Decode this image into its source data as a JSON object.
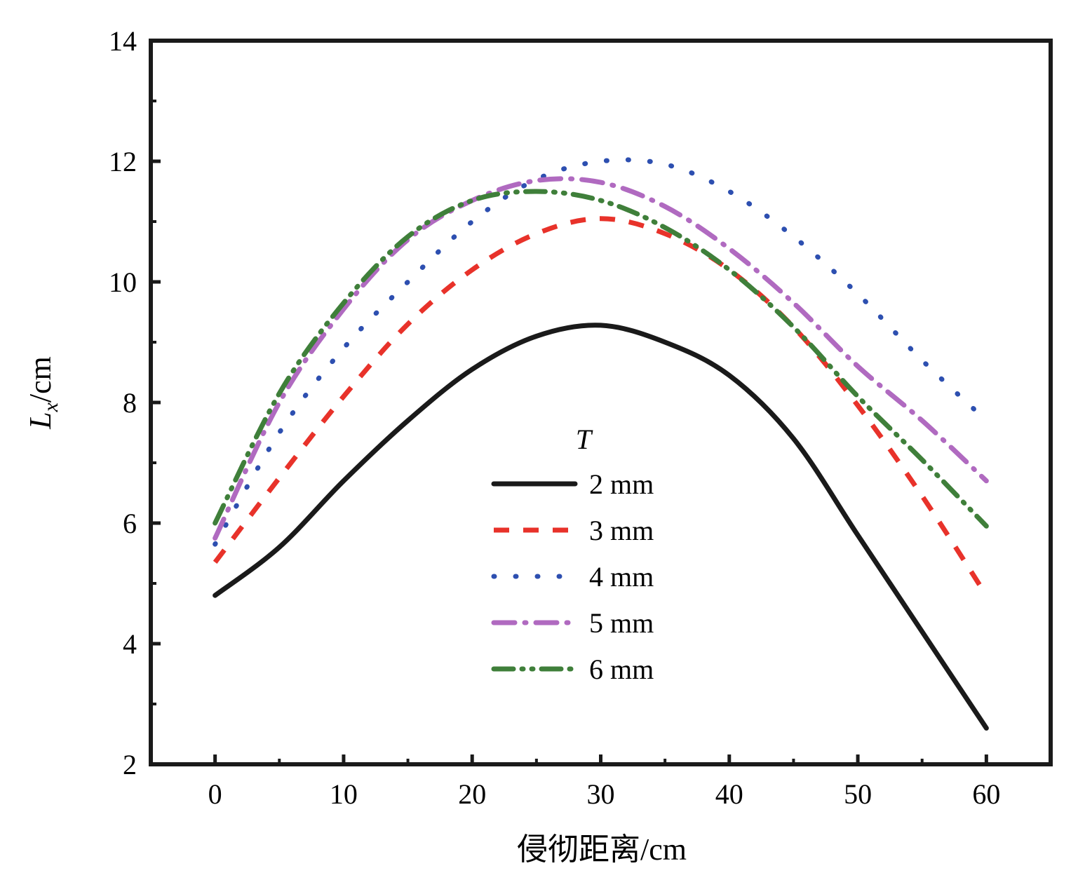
{
  "chart_data": {
    "type": "line",
    "title": "",
    "xlabel": "侵彻距离/cm",
    "ylabel": "L_x/cm",
    "ylabel_main": "L",
    "ylabel_sub": "x",
    "ylabel_unit": "/cm",
    "xlim": [
      -5,
      65
    ],
    "ylim": [
      2,
      14
    ],
    "xticks": [
      0,
      10,
      20,
      30,
      40,
      50,
      60
    ],
    "yticks": [
      2,
      4,
      6,
      8,
      10,
      12,
      14
    ],
    "x_tick_labels": [
      "0",
      "10",
      "20",
      "30",
      "40",
      "50",
      "60"
    ],
    "y_tick_labels": [
      "2",
      "4",
      "6",
      "8",
      "10",
      "12",
      "14"
    ],
    "grid": false,
    "legend_title": "T",
    "legend_position": "center",
    "x": [
      0,
      5,
      10,
      15,
      20,
      25,
      30,
      35,
      40,
      45,
      50,
      55,
      60
    ],
    "series": [
      {
        "name": "2 mm",
        "color": "#1a1a1a",
        "dash": "solid",
        "values": [
          4.8,
          5.6,
          6.7,
          7.7,
          8.55,
          9.1,
          9.28,
          9.0,
          8.45,
          7.4,
          5.8,
          4.2,
          2.6
        ]
      },
      {
        "name": "3 mm",
        "color": "#e8322a",
        "dash": "dash",
        "values": [
          5.35,
          6.75,
          8.1,
          9.3,
          10.2,
          10.8,
          11.05,
          10.8,
          10.2,
          9.25,
          7.95,
          6.45,
          4.8
        ]
      },
      {
        "name": "4 mm",
        "color": "#2d4fb0",
        "dash": "dot",
        "values": [
          5.65,
          7.5,
          8.9,
          10.0,
          11.0,
          11.7,
          12.0,
          11.95,
          11.5,
          10.75,
          9.8,
          8.7,
          7.7
        ]
      },
      {
        "name": "5 mm",
        "color": "#b06ac0",
        "dash": "dashdot",
        "values": [
          5.75,
          8.0,
          9.55,
          10.7,
          11.35,
          11.68,
          11.65,
          11.25,
          10.55,
          9.65,
          8.6,
          7.7,
          6.7
        ]
      },
      {
        "name": "6 mm",
        "color": "#3f7f3a",
        "dash": "dashdotdot",
        "values": [
          6.0,
          8.15,
          9.65,
          10.75,
          11.35,
          11.5,
          11.35,
          10.9,
          10.2,
          9.25,
          8.1,
          7.05,
          5.95
        ]
      }
    ]
  }
}
